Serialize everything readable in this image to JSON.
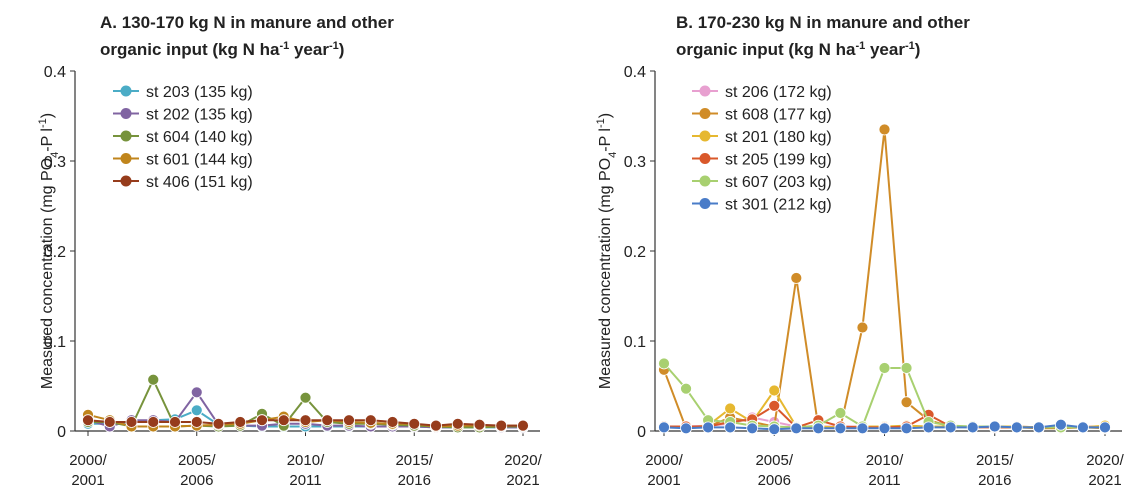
{
  "chart_data": [
    {
      "type": "line",
      "title": [
        [
          {
            "text": "A. 130-170 kg N in manure and other"
          }
        ],
        [
          {
            "text": "organic input (kg N ha"
          },
          {
            "text": "-1",
            "sup": true
          },
          {
            "text": " year"
          },
          {
            "text": "-1",
            "sup": true
          },
          {
            "text": ")"
          }
        ]
      ],
      "ylabel": [
        {
          "text": "Measured concentration (mg PO"
        },
        {
          "text": "4",
          "sub": true
        },
        {
          "text": "-P l"
        },
        {
          "text": "-1",
          "sup": true
        },
        {
          "text": ")"
        }
      ],
      "categories": [
        "2000/2001",
        null,
        null,
        null,
        null,
        "2005/2006",
        null,
        null,
        null,
        null,
        "2010/2011",
        null,
        null,
        null,
        null,
        "2015/2016",
        null,
        null,
        null,
        null,
        "2020/2021"
      ],
      "ylim": [
        0,
        0.4
      ],
      "yticks": [
        0,
        0.1,
        0.2,
        0.3,
        0.4
      ],
      "grid": false,
      "legend": "upper left",
      "series": [
        {
          "name": "st 203 (135 kg)",
          "color": "#4bacc6",
          "values": [
            0.008,
            0.008,
            0.01,
            0.012,
            0.013,
            0.023,
            0.007,
            0.006,
            0.005,
            0.005,
            0.005,
            0.005,
            0.005,
            0.005,
            0.005,
            0.005,
            0.004,
            0.004,
            0.004,
            0.004,
            0.004
          ]
        },
        {
          "name": "st 202 (135 kg)",
          "color": "#8064a2",
          "values": [
            0.012,
            0.005,
            0.012,
            0.012,
            0.01,
            0.043,
            0.007,
            0.006,
            0.006,
            0.008,
            0.008,
            0.006,
            0.006,
            0.005,
            0.005,
            0.005,
            0.004,
            0.004,
            0.005,
            0.004,
            0.004
          ]
        },
        {
          "name": "st 604 (140 kg)",
          "color": "#77933c",
          "values": [
            0.01,
            0.01,
            0.005,
            0.057,
            0.005,
            0.006,
            0.005,
            0.006,
            0.019,
            0.006,
            0.037,
            0.01,
            0.008,
            0.008,
            0.007,
            0.006,
            0.005,
            0.004,
            0.004,
            0.005,
            0.005
          ]
        },
        {
          "name": "st 601 (144 kg)",
          "color": "#c0851c",
          "values": [
            0.018,
            0.012,
            0.005,
            0.005,
            0.005,
            0.006,
            0.007,
            0.008,
            0.012,
            0.016,
            0.01,
            0.012,
            0.01,
            0.009,
            0.008,
            0.008,
            0.005,
            0.006,
            0.006,
            0.006,
            0.006
          ]
        },
        {
          "name": "st 406 (151 kg)",
          "color": "#963c1c",
          "values": [
            0.012,
            0.01,
            0.01,
            0.01,
            0.01,
            0.01,
            0.008,
            0.01,
            0.012,
            0.012,
            0.012,
            0.012,
            0.012,
            0.012,
            0.01,
            0.008,
            0.006,
            0.008,
            0.007,
            0.006,
            0.006
          ]
        }
      ]
    },
    {
      "type": "line",
      "title": [
        [
          {
            "text": "B. 170-230 kg N in manure and other"
          }
        ],
        [
          {
            "text": "organic input (kg N ha"
          },
          {
            "text": "-1",
            "sup": true
          },
          {
            "text": " year"
          },
          {
            "text": "-1",
            "sup": true
          },
          {
            "text": ")"
          }
        ]
      ],
      "ylabel": [
        {
          "text": "Measured concentration (mg PO"
        },
        {
          "text": "4",
          "sub": true
        },
        {
          "text": "-P l"
        },
        {
          "text": "-1",
          "sup": true
        },
        {
          "text": ")"
        }
      ],
      "categories": [
        "2000/2001",
        null,
        null,
        null,
        null,
        "2005/2006",
        null,
        null,
        null,
        null,
        "2010/2011",
        null,
        null,
        null,
        null,
        "2015/2016",
        null,
        null,
        null,
        null,
        "2020/2021"
      ],
      "ylim": [
        0,
        0.4
      ],
      "yticks": [
        0,
        0.1,
        0.2,
        0.3,
        0.4
      ],
      "grid": false,
      "legend": "upper left",
      "series": [
        {
          "name": "st 206 (172 kg)",
          "color": "#e8a0d0",
          "values": [
            0.005,
            0.005,
            0.006,
            0.008,
            0.015,
            0.01,
            0.005,
            0.005,
            0.005,
            0.005,
            0.005,
            0.005,
            0.005,
            0.005,
            0.005,
            0.005,
            0.005,
            0.004,
            0.004,
            0.005,
            0.005
          ]
        },
        {
          "name": "st 608 (177 kg)",
          "color": "#d08c28",
          "values": [
            0.068,
            0.003,
            0.005,
            0.015,
            0.01,
            0.005,
            0.17,
            0.004,
            0.004,
            0.115,
            0.335,
            0.032,
            0.012,
            0.005,
            0.005,
            0.004,
            0.004,
            0.003,
            0.003,
            0.004,
            0.003
          ]
        },
        {
          "name": "st 201 (180 kg)",
          "color": "#e6b830",
          "values": [
            0.005,
            0.004,
            0.006,
            0.025,
            0.01,
            0.045,
            0.005,
            0.005,
            0.004,
            0.005,
            0.005,
            0.006,
            0.005,
            0.005,
            0.005,
            0.005,
            0.005,
            0.004,
            0.004,
            0.004,
            0.006
          ]
        },
        {
          "name": "st 205 (199 kg)",
          "color": "#d9582a",
          "values": [
            0.005,
            0.005,
            0.005,
            0.01,
            0.013,
            0.028,
            0.004,
            0.012,
            0.005,
            0.004,
            0.004,
            0.005,
            0.018,
            0.005,
            0.004,
            0.004,
            0.004,
            0.004,
            0.004,
            0.004,
            0.004
          ]
        },
        {
          "name": "st 607 (203 kg)",
          "color": "#a8d070",
          "values": [
            0.075,
            0.047,
            0.012,
            0.01,
            0.006,
            0.005,
            0.004,
            0.006,
            0.02,
            0.005,
            0.07,
            0.07,
            0.01,
            0.006,
            0.005,
            0.005,
            0.004,
            0.004,
            0.004,
            0.004,
            0.004
          ]
        },
        {
          "name": "st 301 (212 kg)",
          "color": "#4a7cc8",
          "values": [
            0.004,
            0.003,
            0.004,
            0.004,
            0.003,
            0.002,
            0.003,
            0.003,
            0.003,
            0.003,
            0.003,
            0.003,
            0.004,
            0.004,
            0.004,
            0.005,
            0.004,
            0.004,
            0.007,
            0.004,
            0.004
          ]
        }
      ]
    }
  ]
}
